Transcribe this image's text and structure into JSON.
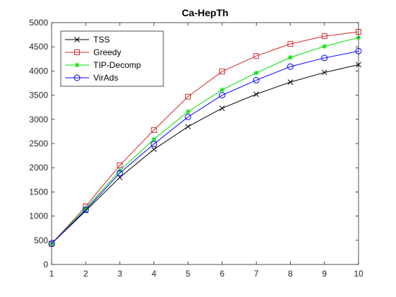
{
  "chart_data": {
    "type": "line",
    "title": "Ca-HepTh",
    "xlabel": "",
    "ylabel": "",
    "x": [
      1,
      2,
      3,
      4,
      5,
      6,
      7,
      8,
      9,
      10
    ],
    "xlim": [
      1,
      10
    ],
    "ylim": [
      0,
      5000
    ],
    "xticks": [
      "1",
      "2",
      "3",
      "4",
      "5",
      "6",
      "7",
      "8",
      "9",
      "10"
    ],
    "yticks": [
      "0",
      "500",
      "1000",
      "1500",
      "2000",
      "2500",
      "3000",
      "3500",
      "4000",
      "4500",
      "5000"
    ],
    "grid": false,
    "legend_position": "top-left",
    "series": [
      {
        "name": "TSS",
        "color": "#000000",
        "marker": "x",
        "values": [
          430,
          1110,
          1800,
          2380,
          2850,
          3230,
          3520,
          3770,
          3970,
          4130
        ]
      },
      {
        "name": "Greedy",
        "color": "#d62728",
        "marker": "square",
        "values": [
          430,
          1200,
          2050,
          2780,
          3470,
          3990,
          4310,
          4560,
          4720,
          4810
        ]
      },
      {
        "name": "TIP-Decomp",
        "color": "#00e000",
        "marker": "asterisk",
        "values": [
          430,
          1160,
          1940,
          2590,
          3160,
          3610,
          3960,
          4280,
          4510,
          4690
        ]
      },
      {
        "name": "VirAds",
        "color": "#0000ff",
        "marker": "circle",
        "values": [
          430,
          1130,
          1890,
          2490,
          3050,
          3500,
          3810,
          4090,
          4270,
          4410
        ]
      }
    ]
  }
}
